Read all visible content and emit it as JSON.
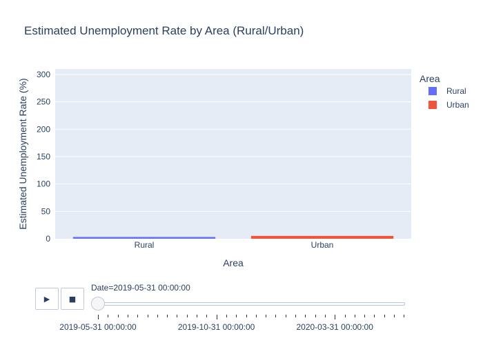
{
  "chart_data": {
    "type": "bar",
    "title": "Estimated Unemployment Rate by Area (Rural/Urban)",
    "xlabel": "Area",
    "ylabel": "Estimated Unemployment Rate (%)",
    "categories": [
      "Rural",
      "Urban"
    ],
    "series": [
      {
        "name": "Rural",
        "category": "Rural",
        "value": 3.2,
        "color": "#636efa"
      },
      {
        "name": "Urban",
        "category": "Urban",
        "value": 5.2,
        "color": "#ef553b"
      }
    ],
    "ylim": [
      0,
      310
    ],
    "yticks": [
      0,
      50,
      100,
      150,
      200,
      250,
      300
    ],
    "grid": true,
    "legend": {
      "title": "Area",
      "placement": "right"
    }
  },
  "animation": {
    "play_icon": "play-icon",
    "stop_icon": "stop-icon",
    "current_frame_label": "Date=2019-05-31 00:00:00",
    "slider_value": 0,
    "slider_labels": [
      "2019-05-31 00:00:00",
      "2019-10-31 00:00:00",
      "2020-03-31 00:00:00"
    ]
  }
}
